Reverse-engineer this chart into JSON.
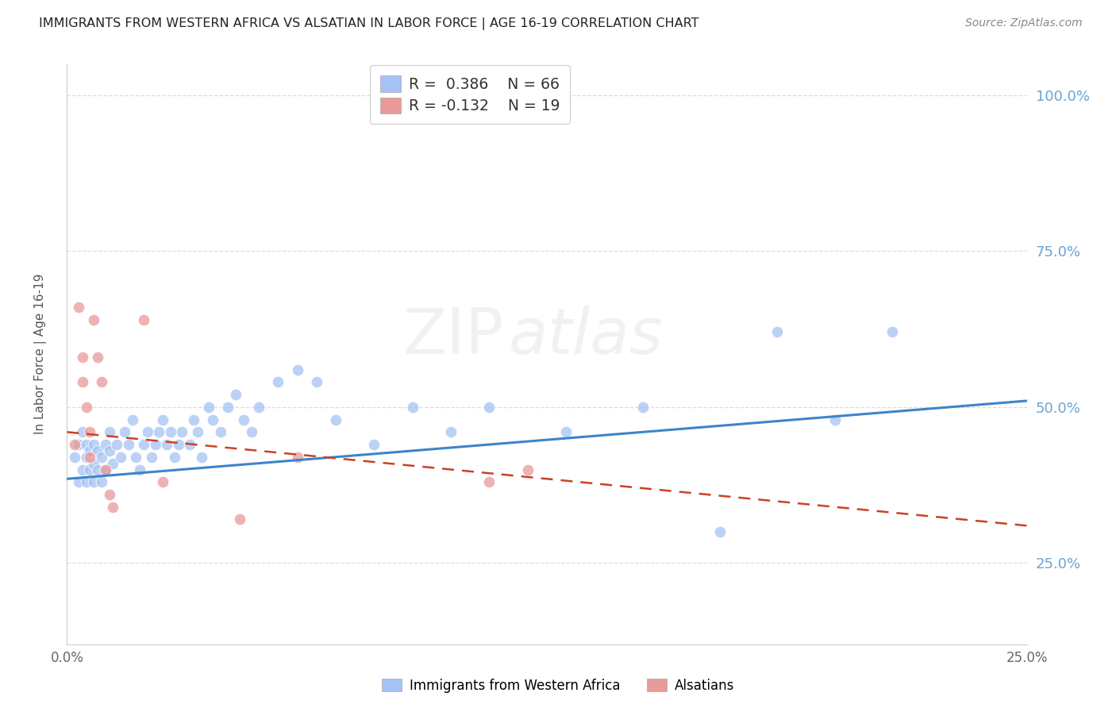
{
  "title": "IMMIGRANTS FROM WESTERN AFRICA VS ALSATIAN IN LABOR FORCE | AGE 16-19 CORRELATION CHART",
  "source": "Source: ZipAtlas.com",
  "ylabel": "In Labor Force | Age 16-19",
  "x_min": 0.0,
  "x_max": 0.25,
  "y_min": 0.12,
  "y_max": 1.05,
  "y_ticks": [
    0.25,
    0.5,
    0.75,
    1.0
  ],
  "y_tick_labels": [
    "25.0%",
    "50.0%",
    "75.0%",
    "100.0%"
  ],
  "x_ticks": [
    0.0,
    0.25
  ],
  "x_tick_labels": [
    "0.0%",
    "25.0%"
  ],
  "blue_R": 0.386,
  "blue_N": 66,
  "pink_R": -0.132,
  "pink_N": 19,
  "blue_color": "#a4c2f4",
  "pink_color": "#ea9999",
  "blue_line_color": "#3d85c8",
  "pink_line_color": "#cc4125",
  "right_axis_color": "#6aa3d5",
  "background_color": "#ffffff",
  "grid_color": "#dddddd",
  "blue_points_x": [
    0.002,
    0.003,
    0.003,
    0.004,
    0.004,
    0.005,
    0.005,
    0.005,
    0.006,
    0.006,
    0.007,
    0.007,
    0.007,
    0.008,
    0.008,
    0.009,
    0.009,
    0.01,
    0.01,
    0.011,
    0.011,
    0.012,
    0.013,
    0.014,
    0.015,
    0.016,
    0.017,
    0.018,
    0.019,
    0.02,
    0.021,
    0.022,
    0.023,
    0.024,
    0.025,
    0.026,
    0.027,
    0.028,
    0.029,
    0.03,
    0.032,
    0.033,
    0.034,
    0.035,
    0.037,
    0.038,
    0.04,
    0.042,
    0.044,
    0.046,
    0.048,
    0.05,
    0.055,
    0.06,
    0.065,
    0.07,
    0.08,
    0.09,
    0.1,
    0.11,
    0.13,
    0.15,
    0.17,
    0.185,
    0.2,
    0.215
  ],
  "blue_points_y": [
    0.42,
    0.38,
    0.44,
    0.4,
    0.46,
    0.38,
    0.42,
    0.44,
    0.4,
    0.43,
    0.38,
    0.41,
    0.44,
    0.4,
    0.43,
    0.38,
    0.42,
    0.44,
    0.4,
    0.43,
    0.46,
    0.41,
    0.44,
    0.42,
    0.46,
    0.44,
    0.48,
    0.42,
    0.4,
    0.44,
    0.46,
    0.42,
    0.44,
    0.46,
    0.48,
    0.44,
    0.46,
    0.42,
    0.44,
    0.46,
    0.44,
    0.48,
    0.46,
    0.42,
    0.5,
    0.48,
    0.46,
    0.5,
    0.52,
    0.48,
    0.46,
    0.5,
    0.54,
    0.56,
    0.54,
    0.48,
    0.44,
    0.5,
    0.46,
    0.5,
    0.46,
    0.5,
    0.3,
    0.62,
    0.48,
    0.62
  ],
  "pink_points_x": [
    0.002,
    0.003,
    0.004,
    0.004,
    0.005,
    0.006,
    0.006,
    0.007,
    0.008,
    0.009,
    0.01,
    0.011,
    0.012,
    0.02,
    0.025,
    0.045,
    0.06,
    0.11,
    0.12
  ],
  "pink_points_y": [
    0.44,
    0.66,
    0.58,
    0.54,
    0.5,
    0.46,
    0.42,
    0.64,
    0.58,
    0.54,
    0.4,
    0.36,
    0.34,
    0.64,
    0.38,
    0.32,
    0.42,
    0.38,
    0.4
  ],
  "blue_line_x": [
    0.0,
    0.25
  ],
  "blue_line_y": [
    0.385,
    0.51
  ],
  "pink_line_x": [
    0.0,
    0.25
  ],
  "pink_line_y": [
    0.46,
    0.31
  ],
  "watermark_line1": "ZIP",
  "watermark_line2": "atlas",
  "legend_label_blue": "Immigrants from Western Africa",
  "legend_label_pink": "Alsatians",
  "title_fontsize": 11.5,
  "source_fontsize": 10,
  "tick_fontsize": 12,
  "ylabel_fontsize": 11
}
